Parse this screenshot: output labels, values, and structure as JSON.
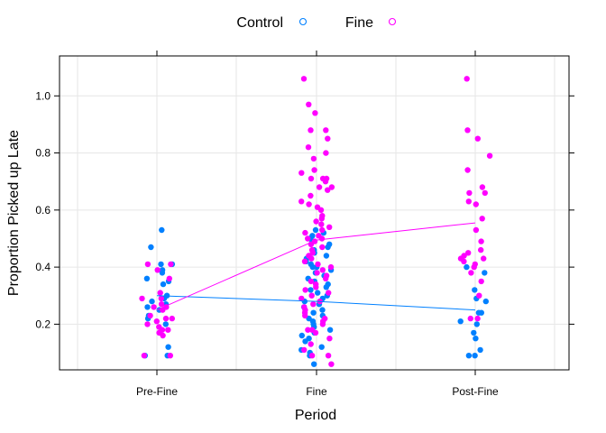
{
  "chart_data": {
    "type": "scatter",
    "title": "",
    "xlabel": "Period",
    "ylabel": "Proportion Picked up Late",
    "categories": [
      "Pre-Fine",
      "Fine",
      "Post-Fine"
    ],
    "ylim": [
      0.04,
      1.14
    ],
    "yticks": [
      0.2,
      0.4,
      0.6,
      0.8,
      1.0
    ],
    "ytick_labels": [
      "0.2",
      "0.4",
      "0.6",
      "0.8",
      "1.0"
    ],
    "grid": true,
    "legend_position": "top",
    "series": [
      {
        "name": "Control",
        "color": "#0080ff",
        "means": [
          0.3,
          0.28,
          0.25
        ],
        "points": [
          [
            1,
            0.53
          ],
          [
            1,
            0.47
          ],
          [
            1,
            0.41
          ],
          [
            1,
            0.41
          ],
          [
            1,
            0.39
          ],
          [
            1,
            0.38
          ],
          [
            1,
            0.36
          ],
          [
            1,
            0.35
          ],
          [
            1,
            0.34
          ],
          [
            1,
            0.3
          ],
          [
            1,
            0.29
          ],
          [
            1,
            0.28
          ],
          [
            1,
            0.27
          ],
          [
            1,
            0.26
          ],
          [
            1,
            0.25
          ],
          [
            1,
            0.23
          ],
          [
            1,
            0.22
          ],
          [
            1,
            0.2
          ],
          [
            1,
            0.12
          ],
          [
            1,
            0.09
          ],
          [
            1,
            0.09
          ],
          [
            2,
            0.53
          ],
          [
            2,
            0.52
          ],
          [
            2,
            0.51
          ],
          [
            2,
            0.5
          ],
          [
            2,
            0.49
          ],
          [
            2,
            0.48
          ],
          [
            2,
            0.47
          ],
          [
            2,
            0.46
          ],
          [
            2,
            0.45
          ],
          [
            2,
            0.44
          ],
          [
            2,
            0.43
          ],
          [
            2,
            0.42
          ],
          [
            2,
            0.41
          ],
          [
            2,
            0.4
          ],
          [
            2,
            0.4
          ],
          [
            2,
            0.39
          ],
          [
            2,
            0.38
          ],
          [
            2,
            0.37
          ],
          [
            2,
            0.36
          ],
          [
            2,
            0.35
          ],
          [
            2,
            0.34
          ],
          [
            2,
            0.33
          ],
          [
            2,
            0.32
          ],
          [
            2,
            0.31
          ],
          [
            2,
            0.3
          ],
          [
            2,
            0.29
          ],
          [
            2,
            0.28
          ],
          [
            2,
            0.27
          ],
          [
            2,
            0.26
          ],
          [
            2,
            0.25
          ],
          [
            2,
            0.24
          ],
          [
            2,
            0.23
          ],
          [
            2,
            0.22
          ],
          [
            2,
            0.21
          ],
          [
            2,
            0.2
          ],
          [
            2,
            0.19
          ],
          [
            2,
            0.18
          ],
          [
            2,
            0.17
          ],
          [
            2,
            0.16
          ],
          [
            2,
            0.15
          ],
          [
            2,
            0.14
          ],
          [
            2,
            0.12
          ],
          [
            2,
            0.11
          ],
          [
            2,
            0.1
          ],
          [
            2,
            0.09
          ],
          [
            2,
            0.06
          ],
          [
            3,
            0.4
          ],
          [
            3,
            0.38
          ],
          [
            3,
            0.32
          ],
          [
            3,
            0.29
          ],
          [
            3,
            0.28
          ],
          [
            3,
            0.24
          ],
          [
            3,
            0.24
          ],
          [
            3,
            0.21
          ],
          [
            3,
            0.2
          ],
          [
            3,
            0.17
          ],
          [
            3,
            0.15
          ],
          [
            3,
            0.11
          ],
          [
            3,
            0.09
          ],
          [
            3,
            0.09
          ]
        ]
      },
      {
        "name": "Fine",
        "color": "#ff00ff",
        "means": [
          0.25,
          0.495,
          0.555
        ],
        "points": [
          [
            1,
            0.41
          ],
          [
            1,
            0.41
          ],
          [
            1,
            0.39
          ],
          [
            1,
            0.36
          ],
          [
            1,
            0.31
          ],
          [
            1,
            0.29
          ],
          [
            1,
            0.29
          ],
          [
            1,
            0.27
          ],
          [
            1,
            0.26
          ],
          [
            1,
            0.26
          ],
          [
            1,
            0.25
          ],
          [
            1,
            0.23
          ],
          [
            1,
            0.22
          ],
          [
            1,
            0.22
          ],
          [
            1,
            0.21
          ],
          [
            1,
            0.2
          ],
          [
            1,
            0.19
          ],
          [
            1,
            0.18
          ],
          [
            1,
            0.18
          ],
          [
            1,
            0.17
          ],
          [
            1,
            0.16
          ],
          [
            1,
            0.09
          ],
          [
            1,
            0.09
          ],
          [
            2,
            1.06
          ],
          [
            2,
            0.97
          ],
          [
            2,
            0.94
          ],
          [
            2,
            0.88
          ],
          [
            2,
            0.88
          ],
          [
            2,
            0.85
          ],
          [
            2,
            0.82
          ],
          [
            2,
            0.8
          ],
          [
            2,
            0.78
          ],
          [
            2,
            0.74
          ],
          [
            2,
            0.73
          ],
          [
            2,
            0.71
          ],
          [
            2,
            0.71
          ],
          [
            2,
            0.71
          ],
          [
            2,
            0.7
          ],
          [
            2,
            0.68
          ],
          [
            2,
            0.68
          ],
          [
            2,
            0.67
          ],
          [
            2,
            0.65
          ],
          [
            2,
            0.63
          ],
          [
            2,
            0.62
          ],
          [
            2,
            0.61
          ],
          [
            2,
            0.6
          ],
          [
            2,
            0.58
          ],
          [
            2,
            0.57
          ],
          [
            2,
            0.56
          ],
          [
            2,
            0.55
          ],
          [
            2,
            0.54
          ],
          [
            2,
            0.53
          ],
          [
            2,
            0.52
          ],
          [
            2,
            0.51
          ],
          [
            2,
            0.5
          ],
          [
            2,
            0.5
          ],
          [
            2,
            0.49
          ],
          [
            2,
            0.48
          ],
          [
            2,
            0.47
          ],
          [
            2,
            0.46
          ],
          [
            2,
            0.45
          ],
          [
            2,
            0.44
          ],
          [
            2,
            0.43
          ],
          [
            2,
            0.42
          ],
          [
            2,
            0.41
          ],
          [
            2,
            0.4
          ],
          [
            2,
            0.39
          ],
          [
            2,
            0.38
          ],
          [
            2,
            0.37
          ],
          [
            2,
            0.36
          ],
          [
            2,
            0.35
          ],
          [
            2,
            0.34
          ],
          [
            2,
            0.33
          ],
          [
            2,
            0.32
          ],
          [
            2,
            0.31
          ],
          [
            2,
            0.3
          ],
          [
            2,
            0.29
          ],
          [
            2,
            0.28
          ],
          [
            2,
            0.27
          ],
          [
            2,
            0.26
          ],
          [
            2,
            0.25
          ],
          [
            2,
            0.24
          ],
          [
            2,
            0.23
          ],
          [
            2,
            0.22
          ],
          [
            2,
            0.21
          ],
          [
            2,
            0.2
          ],
          [
            2,
            0.18
          ],
          [
            2,
            0.18
          ],
          [
            2,
            0.17
          ],
          [
            2,
            0.15
          ],
          [
            2,
            0.13
          ],
          [
            2,
            0.11
          ],
          [
            2,
            0.09
          ],
          [
            2,
            0.09
          ],
          [
            2,
            0.06
          ],
          [
            3,
            1.06
          ],
          [
            3,
            0.88
          ],
          [
            3,
            0.85
          ],
          [
            3,
            0.79
          ],
          [
            3,
            0.74
          ],
          [
            3,
            0.68
          ],
          [
            3,
            0.66
          ],
          [
            3,
            0.66
          ],
          [
            3,
            0.63
          ],
          [
            3,
            0.62
          ],
          [
            3,
            0.57
          ],
          [
            3,
            0.53
          ],
          [
            3,
            0.49
          ],
          [
            3,
            0.46
          ],
          [
            3,
            0.45
          ],
          [
            3,
            0.44
          ],
          [
            3,
            0.43
          ],
          [
            3,
            0.43
          ],
          [
            3,
            0.42
          ],
          [
            3,
            0.41
          ],
          [
            3,
            0.4
          ],
          [
            3,
            0.38
          ],
          [
            3,
            0.35
          ],
          [
            3,
            0.3
          ],
          [
            3,
            0.22
          ],
          [
            3,
            0.22
          ]
        ]
      }
    ]
  }
}
